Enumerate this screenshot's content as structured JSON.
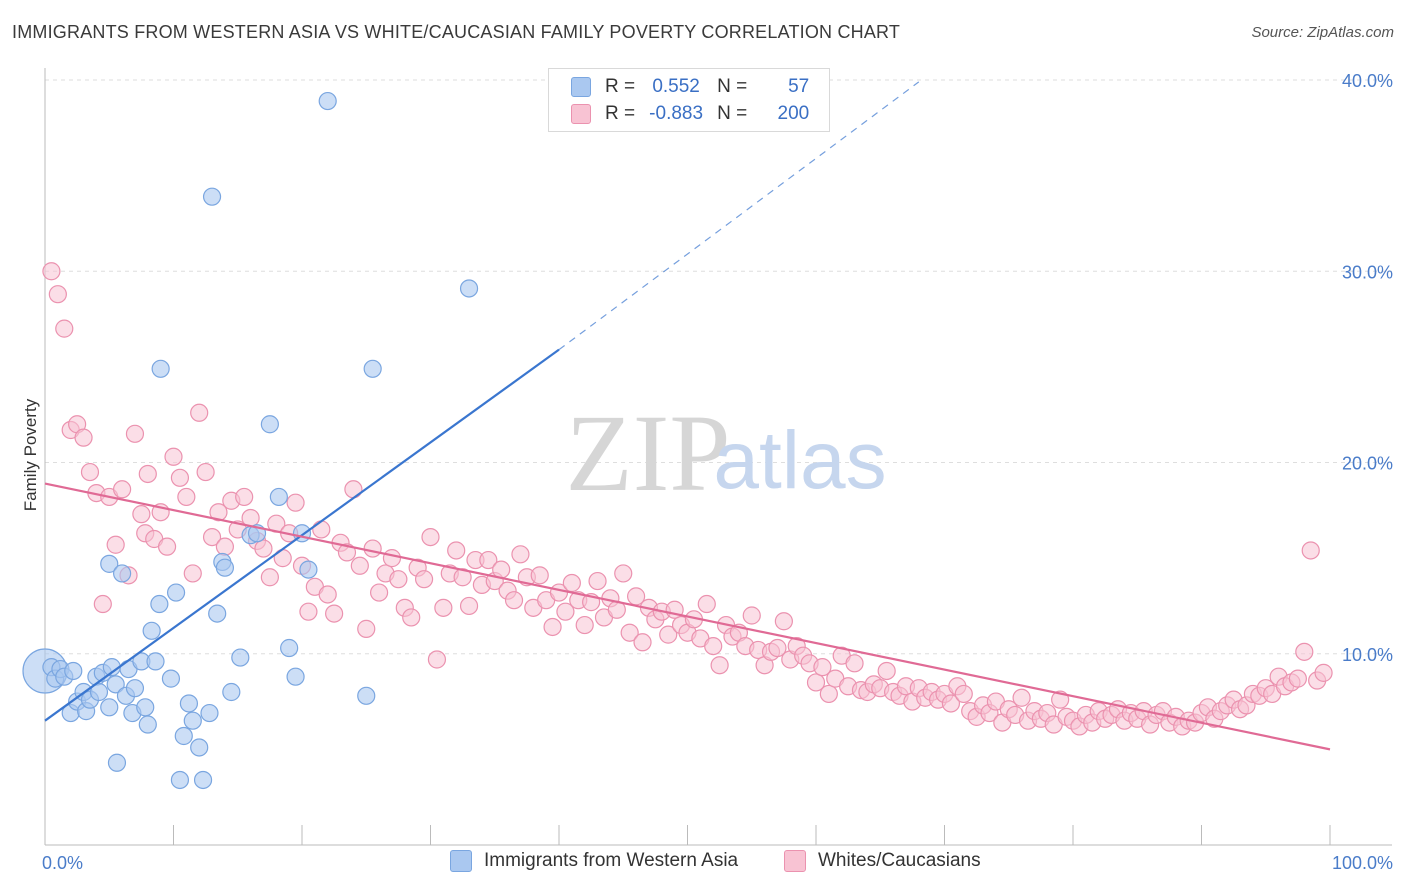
{
  "header": {
    "title": "IMMIGRANTS FROM WESTERN ASIA VS WHITE/CAUCASIAN FAMILY POVERTY CORRELATION CHART",
    "source": "Source: ZipAtlas.com"
  },
  "watermark": {
    "zip": "ZIP",
    "atlas": "atlas"
  },
  "legend_top": {
    "rows": [
      {
        "r_label": "R =",
        "r_value": "0.552",
        "n_label": "N =",
        "n_value": "57",
        "color": "#aac8f0",
        "border": "#7aa6e0"
      },
      {
        "r_label": "R =",
        "r_value": "-0.883",
        "n_label": "N =",
        "n_value": "200",
        "color": "#f8c3d3",
        "border": "#eb92af"
      }
    ]
  },
  "legend_bottom": [
    {
      "label": "Immigrants from Western Asia",
      "color": "#aac8f0",
      "border": "#7aa6e0"
    },
    {
      "label": "Whites/Caucasians",
      "color": "#f8c3d3",
      "border": "#eb92af"
    }
  ],
  "chart_data": {
    "type": "scatter",
    "title": "IMMIGRANTS FROM WESTERN ASIA VS WHITE/CAUCASIAN FAMILY POVERTY CORRELATION CHART",
    "xlabel": "",
    "ylabel": "Family Poverty",
    "xlim": [
      0,
      100
    ],
    "ylim": [
      0,
      40
    ],
    "x_tick_labels": [
      "0.0%",
      "100.0%"
    ],
    "y_ticks": [
      10,
      20,
      30,
      40
    ],
    "y_tick_labels": [
      "10.0%",
      "20.0%",
      "30.0%",
      "40.0%"
    ],
    "grid": true,
    "series": [
      {
        "name": "Immigrants from Western Asia",
        "color": "#7aa6e0",
        "fill": "#aac8f0",
        "trend": {
          "x0": 0,
          "y0": 6.5,
          "x1": 40,
          "y1": 25.9,
          "dash_to_x": 68,
          "dash_to_y": 39.9,
          "color": "#3a76cf"
        },
        "points": [
          [
            0.5,
            9.3
          ],
          [
            0.8,
            8.7
          ],
          [
            1.2,
            9.2
          ],
          [
            1.5,
            8.8
          ],
          [
            2.0,
            6.9
          ],
          [
            2.2,
            9.1
          ],
          [
            2.5,
            7.5
          ],
          [
            3.0,
            8.0
          ],
          [
            3.2,
            7.0
          ],
          [
            3.5,
            7.6
          ],
          [
            4.0,
            8.8
          ],
          [
            4.2,
            8.0
          ],
          [
            4.5,
            9.0
          ],
          [
            5.0,
            7.2
          ],
          [
            5.2,
            9.3
          ],
          [
            5.5,
            8.4
          ],
          [
            5.0,
            14.7
          ],
          [
            5.6,
            4.3
          ],
          [
            6.0,
            14.2
          ],
          [
            6.3,
            7.8
          ],
          [
            6.5,
            9.2
          ],
          [
            6.8,
            6.9
          ],
          [
            7.0,
            8.2
          ],
          [
            7.5,
            9.6
          ],
          [
            7.8,
            7.2
          ],
          [
            8.0,
            6.3
          ],
          [
            8.3,
            11.2
          ],
          [
            8.6,
            9.6
          ],
          [
            8.9,
            12.6
          ],
          [
            9.0,
            24.9
          ],
          [
            9.8,
            8.7
          ],
          [
            10.2,
            13.2
          ],
          [
            10.5,
            3.4
          ],
          [
            10.8,
            5.7
          ],
          [
            11.2,
            7.4
          ],
          [
            11.5,
            6.5
          ],
          [
            12.0,
            5.1
          ],
          [
            12.3,
            3.4
          ],
          [
            12.8,
            6.9
          ],
          [
            13.0,
            33.9
          ],
          [
            13.4,
            12.1
          ],
          [
            13.8,
            14.8
          ],
          [
            14.0,
            14.5
          ],
          [
            14.5,
            8.0
          ],
          [
            15.2,
            9.8
          ],
          [
            16.0,
            16.2
          ],
          [
            16.5,
            16.3
          ],
          [
            17.5,
            22.0
          ],
          [
            18.2,
            18.2
          ],
          [
            19.0,
            10.3
          ],
          [
            19.5,
            8.8
          ],
          [
            20.0,
            16.3
          ],
          [
            20.5,
            14.4
          ],
          [
            22.0,
            38.9
          ],
          [
            25.0,
            7.8
          ],
          [
            25.5,
            24.9
          ],
          [
            33.0,
            29.1
          ]
        ]
      },
      {
        "name": "Whites/Caucasians",
        "color": "#eb92af",
        "fill": "#f8c3d3",
        "trend": {
          "x0": 0,
          "y0": 18.9,
          "x1": 100,
          "y1": 5.0,
          "color": "#e06a95"
        },
        "points": [
          [
            0.5,
            30.0
          ],
          [
            1.0,
            28.8
          ],
          [
            1.5,
            27.0
          ],
          [
            2.0,
            21.7
          ],
          [
            2.5,
            22.0
          ],
          [
            3.0,
            21.3
          ],
          [
            3.5,
            19.5
          ],
          [
            4.0,
            18.4
          ],
          [
            4.5,
            12.6
          ],
          [
            5.0,
            18.2
          ],
          [
            5.5,
            15.7
          ],
          [
            6.0,
            18.6
          ],
          [
            6.5,
            14.1
          ],
          [
            7.0,
            21.5
          ],
          [
            7.5,
            17.3
          ],
          [
            7.8,
            16.3
          ],
          [
            8.0,
            19.4
          ],
          [
            8.5,
            16.0
          ],
          [
            9.0,
            17.4
          ],
          [
            9.5,
            15.6
          ],
          [
            10.0,
            20.3
          ],
          [
            10.5,
            19.2
          ],
          [
            11.0,
            18.2
          ],
          [
            11.5,
            14.2
          ],
          [
            12.0,
            22.6
          ],
          [
            12.5,
            19.5
          ],
          [
            13.0,
            16.1
          ],
          [
            13.5,
            17.4
          ],
          [
            14.0,
            15.6
          ],
          [
            14.5,
            18.0
          ],
          [
            15.0,
            16.5
          ],
          [
            15.5,
            18.2
          ],
          [
            16.0,
            17.1
          ],
          [
            16.5,
            15.9
          ],
          [
            17.0,
            15.5
          ],
          [
            17.5,
            14.0
          ],
          [
            18.0,
            16.8
          ],
          [
            18.5,
            15.0
          ],
          [
            19.0,
            16.3
          ],
          [
            19.5,
            17.9
          ],
          [
            20.0,
            14.6
          ],
          [
            20.5,
            12.2
          ],
          [
            21.0,
            13.5
          ],
          [
            21.5,
            16.5
          ],
          [
            22.0,
            13.1
          ],
          [
            22.5,
            12.1
          ],
          [
            23.0,
            15.8
          ],
          [
            23.5,
            15.3
          ],
          [
            24.0,
            18.6
          ],
          [
            24.5,
            14.6
          ],
          [
            25.0,
            11.3
          ],
          [
            25.5,
            15.5
          ],
          [
            26.0,
            13.2
          ],
          [
            26.5,
            14.2
          ],
          [
            27.0,
            15.0
          ],
          [
            27.5,
            13.9
          ],
          [
            28.0,
            12.4
          ],
          [
            28.5,
            11.9
          ],
          [
            29.0,
            14.5
          ],
          [
            29.5,
            13.9
          ],
          [
            30.0,
            16.1
          ],
          [
            30.5,
            9.7
          ],
          [
            31.0,
            12.4
          ],
          [
            31.5,
            14.2
          ],
          [
            32.0,
            15.4
          ],
          [
            32.5,
            14.0
          ],
          [
            33.0,
            12.5
          ],
          [
            33.5,
            14.9
          ],
          [
            34.0,
            13.6
          ],
          [
            34.5,
            14.9
          ],
          [
            35.0,
            13.8
          ],
          [
            35.5,
            14.4
          ],
          [
            36.0,
            13.3
          ],
          [
            36.5,
            12.8
          ],
          [
            37.0,
            15.2
          ],
          [
            37.5,
            14.0
          ],
          [
            38.0,
            12.4
          ],
          [
            38.5,
            14.1
          ],
          [
            39.0,
            12.8
          ],
          [
            39.5,
            11.4
          ],
          [
            40.0,
            13.2
          ],
          [
            40.5,
            12.2
          ],
          [
            41.0,
            13.7
          ],
          [
            41.5,
            12.8
          ],
          [
            42.0,
            11.5
          ],
          [
            42.5,
            12.7
          ],
          [
            43.0,
            13.8
          ],
          [
            43.5,
            11.9
          ],
          [
            44.0,
            12.9
          ],
          [
            44.5,
            12.3
          ],
          [
            45.0,
            14.2
          ],
          [
            45.5,
            11.1
          ],
          [
            46.0,
            13.0
          ],
          [
            46.5,
            10.6
          ],
          [
            47.0,
            12.4
          ],
          [
            47.5,
            11.8
          ],
          [
            48.0,
            12.2
          ],
          [
            48.5,
            11.0
          ],
          [
            49.0,
            12.3
          ],
          [
            49.5,
            11.5
          ],
          [
            50.0,
            11.1
          ],
          [
            50.5,
            11.8
          ],
          [
            51.0,
            10.8
          ],
          [
            51.5,
            12.6
          ],
          [
            52.0,
            10.4
          ],
          [
            52.5,
            9.4
          ],
          [
            53.0,
            11.5
          ],
          [
            53.5,
            10.9
          ],
          [
            54.0,
            11.1
          ],
          [
            54.5,
            10.4
          ],
          [
            55.0,
            12.0
          ],
          [
            55.5,
            10.2
          ],
          [
            56.0,
            9.4
          ],
          [
            56.5,
            10.1
          ],
          [
            57.0,
            10.3
          ],
          [
            57.5,
            11.7
          ],
          [
            58.0,
            9.7
          ],
          [
            58.5,
            10.4
          ],
          [
            59.0,
            9.9
          ],
          [
            59.5,
            9.5
          ],
          [
            60.0,
            8.5
          ],
          [
            60.5,
            9.3
          ],
          [
            61.0,
            7.9
          ],
          [
            61.5,
            8.7
          ],
          [
            62.0,
            9.9
          ],
          [
            62.5,
            8.3
          ],
          [
            63.0,
            9.5
          ],
          [
            63.5,
            8.1
          ],
          [
            64.0,
            8.0
          ],
          [
            64.5,
            8.4
          ],
          [
            65.0,
            8.2
          ],
          [
            65.5,
            9.1
          ],
          [
            66.0,
            8.0
          ],
          [
            66.5,
            7.8
          ],
          [
            67.0,
            8.3
          ],
          [
            67.5,
            7.5
          ],
          [
            68.0,
            8.2
          ],
          [
            68.5,
            7.7
          ],
          [
            69.0,
            8.0
          ],
          [
            69.5,
            7.6
          ],
          [
            70.0,
            7.9
          ],
          [
            70.5,
            7.4
          ],
          [
            71.0,
            8.3
          ],
          [
            71.5,
            7.9
          ],
          [
            72.0,
            7.0
          ],
          [
            72.5,
            6.7
          ],
          [
            73.0,
            7.3
          ],
          [
            73.5,
            6.9
          ],
          [
            74.0,
            7.5
          ],
          [
            74.5,
            6.4
          ],
          [
            75.0,
            7.1
          ],
          [
            75.5,
            6.8
          ],
          [
            76.0,
            7.7
          ],
          [
            76.5,
            6.5
          ],
          [
            77.0,
            7.0
          ],
          [
            77.5,
            6.6
          ],
          [
            78.0,
            6.9
          ],
          [
            78.5,
            6.3
          ],
          [
            79.0,
            7.6
          ],
          [
            79.5,
            6.7
          ],
          [
            80.0,
            6.5
          ],
          [
            80.5,
            6.2
          ],
          [
            81.0,
            6.8
          ],
          [
            81.5,
            6.4
          ],
          [
            82.0,
            7.0
          ],
          [
            82.5,
            6.6
          ],
          [
            83.0,
            6.8
          ],
          [
            83.5,
            7.1
          ],
          [
            84.0,
            6.5
          ],
          [
            84.5,
            6.9
          ],
          [
            85.0,
            6.6
          ],
          [
            85.5,
            7.0
          ],
          [
            86.0,
            6.3
          ],
          [
            86.5,
            6.8
          ],
          [
            87.0,
            7.0
          ],
          [
            87.5,
            6.4
          ],
          [
            88.0,
            6.7
          ],
          [
            88.5,
            6.2
          ],
          [
            89.0,
            6.5
          ],
          [
            89.5,
            6.4
          ],
          [
            90.0,
            6.9
          ],
          [
            90.5,
            7.2
          ],
          [
            91.0,
            6.6
          ],
          [
            91.5,
            7.0
          ],
          [
            92.0,
            7.3
          ],
          [
            92.5,
            7.6
          ],
          [
            93.0,
            7.1
          ],
          [
            93.5,
            7.3
          ],
          [
            94.0,
            7.9
          ],
          [
            94.5,
            7.8
          ],
          [
            95.0,
            8.2
          ],
          [
            95.5,
            7.9
          ],
          [
            96.0,
            8.8
          ],
          [
            96.5,
            8.3
          ],
          [
            97.0,
            8.5
          ],
          [
            97.5,
            8.7
          ],
          [
            98.0,
            10.1
          ],
          [
            98.5,
            15.4
          ],
          [
            99.0,
            8.6
          ],
          [
            99.5,
            9.0
          ]
        ]
      }
    ]
  }
}
